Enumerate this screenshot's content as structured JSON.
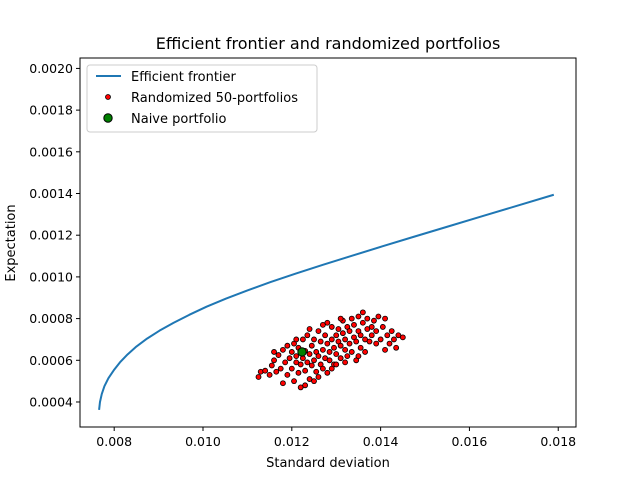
{
  "chart_data": {
    "type": "scatter",
    "title": "Efficient frontier and randomized portfolios",
    "xlabel": "Standard deviation",
    "ylabel": "Expectation",
    "xlim": [
      0.00723,
      0.0184
    ],
    "ylim": [
      0.00028,
      0.00205
    ],
    "x_ticks": [
      0.008,
      0.01,
      0.012,
      0.014,
      0.016,
      0.018
    ],
    "x_tick_labels": [
      "0.008",
      "0.010",
      "0.012",
      "0.014",
      "0.016",
      "0.018"
    ],
    "y_ticks": [
      0.0004,
      0.0006,
      0.0008,
      0.001,
      0.0012,
      0.0014,
      0.0016,
      0.0018,
      0.002
    ],
    "y_tick_labels": [
      "0.0004",
      "0.0006",
      "0.0008",
      "0.0010",
      "0.0012",
      "0.0014",
      "0.0016",
      "0.0018",
      "0.0020"
    ],
    "grid": false,
    "legend_position": "upper-left",
    "series": [
      {
        "name": "Efficient frontier",
        "kind": "line",
        "color": "#1f77b4",
        "x": [
          0.00766,
          0.00768,
          0.00772,
          0.00778,
          0.00787,
          0.00799,
          0.00813,
          0.0083,
          0.0085,
          0.00874,
          0.00902,
          0.00934,
          0.00969,
          0.01008,
          0.01052,
          0.011,
          0.01152,
          0.01209,
          0.0127,
          0.01335,
          0.01403,
          0.01474,
          0.01549,
          0.01627,
          0.01707,
          0.0179
        ],
        "y": [
          0.000362,
          0.0004,
          0.000438,
          0.000476,
          0.000514,
          0.000552,
          0.00059,
          0.000628,
          0.000666,
          0.000704,
          0.000742,
          0.00078,
          0.000818,
          0.000857,
          0.000896,
          0.000935,
          0.000975,
          0.001016,
          0.001058,
          0.001101,
          0.001146,
          0.001192,
          0.00124,
          0.00129,
          0.001341,
          0.001394
        ]
      },
      {
        "name": "Randomized 50-portfolios",
        "kind": "scatter",
        "color": "#ff0000",
        "edge_color": "#000000",
        "points": [
          [
            0.01125,
            0.00052
          ],
          [
            0.0113,
            0.000545
          ],
          [
            0.0114,
            0.00055
          ],
          [
            0.0115,
            0.00053
          ],
          [
            0.01155,
            0.000575
          ],
          [
            0.0116,
            0.0006
          ],
          [
            0.01165,
            0.000545
          ],
          [
            0.0117,
            0.000625
          ],
          [
            0.01175,
            0.00056
          ],
          [
            0.0118,
            0.00049
          ],
          [
            0.0118,
            0.00065
          ],
          [
            0.01185,
            0.00059
          ],
          [
            0.0119,
            0.00053
          ],
          [
            0.01195,
            0.00061
          ],
          [
            0.012,
            0.00056
          ],
          [
            0.012,
            0.00064
          ],
          [
            0.01205,
            0.0005
          ],
          [
            0.01205,
            0.00068
          ],
          [
            0.0121,
            0.00059
          ],
          [
            0.0121,
            0.00062
          ],
          [
            0.01215,
            0.00054
          ],
          [
            0.01215,
            0.00066
          ],
          [
            0.0122,
            0.00047
          ],
          [
            0.0122,
            0.00058
          ],
          [
            0.01225,
            0.0007
          ],
          [
            0.01225,
            0.00061
          ],
          [
            0.0123,
            0.00055
          ],
          [
            0.0123,
            0.000645
          ],
          [
            0.01235,
            0.00059
          ],
          [
            0.01235,
            0.00072
          ],
          [
            0.0124,
            0.00051
          ],
          [
            0.0124,
            0.00063
          ],
          [
            0.01245,
            0.00067
          ],
          [
            0.01245,
            0.000575
          ],
          [
            0.0125,
            0.0006
          ],
          [
            0.0125,
            0.0007
          ],
          [
            0.01255,
            0.000545
          ],
          [
            0.01255,
            0.00064
          ],
          [
            0.0126,
            0.00062
          ],
          [
            0.0126,
            0.00074
          ],
          [
            0.01265,
            0.00058
          ],
          [
            0.01265,
            0.00069
          ],
          [
            0.0127,
            0.00065
          ],
          [
            0.0127,
            0.00056
          ],
          [
            0.01275,
            0.00072
          ],
          [
            0.01275,
            0.00061
          ],
          [
            0.0128,
            0.00068
          ],
          [
            0.0128,
            0.00078
          ],
          [
            0.01285,
            0.0006
          ],
          [
            0.01285,
            0.00064
          ],
          [
            0.0129,
            0.0007
          ],
          [
            0.0129,
            0.00076
          ],
          [
            0.01295,
            0.00058
          ],
          [
            0.01295,
            0.00066
          ],
          [
            0.013,
            0.00072
          ],
          [
            0.013,
            0.00063
          ],
          [
            0.01305,
            0.00069
          ],
          [
            0.01305,
            0.00075
          ],
          [
            0.0131,
            0.00061
          ],
          [
            0.0131,
            0.00067
          ],
          [
            0.01315,
            0.00073
          ],
          [
            0.01315,
            0.00079
          ],
          [
            0.0132,
            0.00065
          ],
          [
            0.0132,
            0.0007
          ],
          [
            0.01325,
            0.00062
          ],
          [
            0.01325,
            0.00076
          ],
          [
            0.0133,
            0.00068
          ],
          [
            0.0133,
            0.00074
          ],
          [
            0.01335,
            0.0008
          ],
          [
            0.01335,
            0.00064
          ],
          [
            0.0134,
            0.00071
          ],
          [
            0.0134,
            0.00077
          ],
          [
            0.01345,
            0.00069
          ],
          [
            0.01345,
            0.0006
          ],
          [
            0.0135,
            0.00074
          ],
          [
            0.0135,
            0.00081
          ],
          [
            0.01355,
            0.00066
          ],
          [
            0.01355,
            0.00072
          ],
          [
            0.0136,
            0.00078
          ],
          [
            0.0136,
            0.00083
          ],
          [
            0.01365,
            0.0007
          ],
          [
            0.01365,
            0.00064
          ],
          [
            0.0137,
            0.00075
          ],
          [
            0.0137,
            0.0008
          ],
          [
            0.01375,
            0.00069
          ],
          [
            0.0138,
            0.00076
          ],
          [
            0.0138,
            0.00072
          ],
          [
            0.01385,
            0.00079
          ],
          [
            0.0139,
            0.00068
          ],
          [
            0.0139,
            0.00074
          ],
          [
            0.01395,
            0.00081
          ],
          [
            0.014,
            0.0007
          ],
          [
            0.01405,
            0.00076
          ],
          [
            0.0141,
            0.00065
          ],
          [
            0.0141,
            0.0008
          ],
          [
            0.01415,
            0.00072
          ],
          [
            0.0142,
            0.00068
          ],
          [
            0.01425,
            0.00074
          ],
          [
            0.0143,
            0.0007
          ],
          [
            0.01435,
            0.00066
          ],
          [
            0.0144,
            0.00072
          ],
          [
            0.0145,
            0.00071
          ],
          [
            0.0123,
            0.00048
          ],
          [
            0.0126,
            0.00052
          ],
          [
            0.0128,
            0.00054
          ],
          [
            0.013,
            0.00058
          ],
          [
            0.0132,
            0.00059
          ],
          [
            0.0135,
            0.00062
          ],
          [
            0.0121,
            0.0007
          ],
          [
            0.0119,
            0.00067
          ],
          [
            0.0116,
            0.00064
          ],
          [
            0.0124,
            0.00075
          ],
          [
            0.0127,
            0.00077
          ],
          [
            0.0131,
            0.0008
          ],
          [
            0.0125,
            0.0005
          ],
          [
            0.0129,
            0.00056
          ]
        ]
      },
      {
        "name": "Naive portfolio",
        "kind": "point",
        "color": "#008000",
        "edge_color": "#000000",
        "x": 0.01223,
        "y": 0.00064
      }
    ]
  }
}
